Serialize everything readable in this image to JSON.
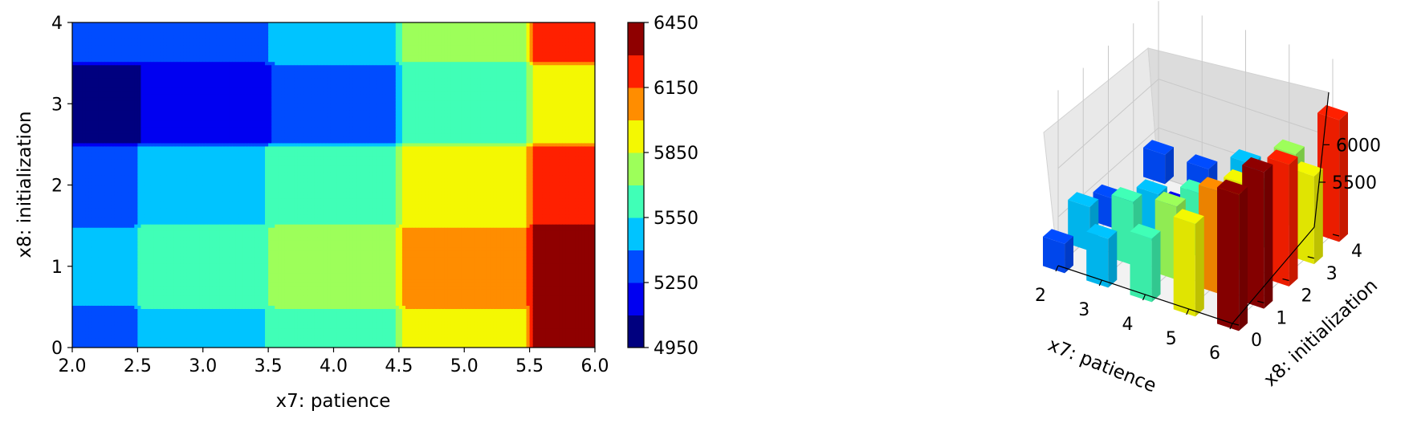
{
  "chart_data": [
    {
      "type": "heatmap",
      "subtype": "filled-contour",
      "title": "",
      "xlabel": "x7: patience",
      "ylabel": "x8: initialization",
      "xlim": [
        2.0,
        6.0
      ],
      "ylim": [
        0,
        4
      ],
      "x_ticks": [
        "2.0",
        "2.5",
        "3.0",
        "3.5",
        "4.0",
        "4.5",
        "5.0",
        "5.5",
        "6.0"
      ],
      "y_ticks": [
        "0",
        "1",
        "2",
        "3",
        "4"
      ],
      "x_columns": [
        2,
        3,
        4,
        5,
        6
      ],
      "y_rows": [
        0,
        1,
        2,
        3,
        4
      ],
      "z_grid": [
        [
          5300,
          5500,
          5650,
          5950,
          6400
        ],
        [
          5450,
          5650,
          5750,
          6050,
          6400
        ],
        [
          5300,
          5500,
          5650,
          5900,
          6250
        ],
        [
          5000,
          5150,
          5300,
          5600,
          5900
        ],
        [
          5300,
          5300,
          5500,
          5750,
          6250
        ]
      ],
      "colormap": "jet",
      "colorbar": {
        "min": 4950,
        "max": 6450,
        "levels": [
          4950,
          5100,
          5250,
          5400,
          5550,
          5700,
          5850,
          6000,
          6150,
          6300,
          6450
        ],
        "level_colors": [
          "#00007f",
          "#0000f1",
          "#004cff",
          "#00c4ff",
          "#40ffb7",
          "#9dff5a",
          "#f4f802",
          "#ff8d00",
          "#ff2000",
          "#8f0000"
        ],
        "tick_labels": [
          "4950",
          "5250",
          "5550",
          "5850",
          "6150",
          "6450"
        ]
      }
    },
    {
      "type": "bar3d",
      "xlabel": "x7: patience",
      "ylabel": "x8: initialization",
      "x_ticks": [
        "2",
        "3",
        "4",
        "5",
        "6"
      ],
      "y_ticks": [
        "0",
        "1",
        "2",
        "3",
        "4"
      ],
      "z_ticks": [
        "5500",
        "6000"
      ],
      "colormap": "jet"
    }
  ]
}
